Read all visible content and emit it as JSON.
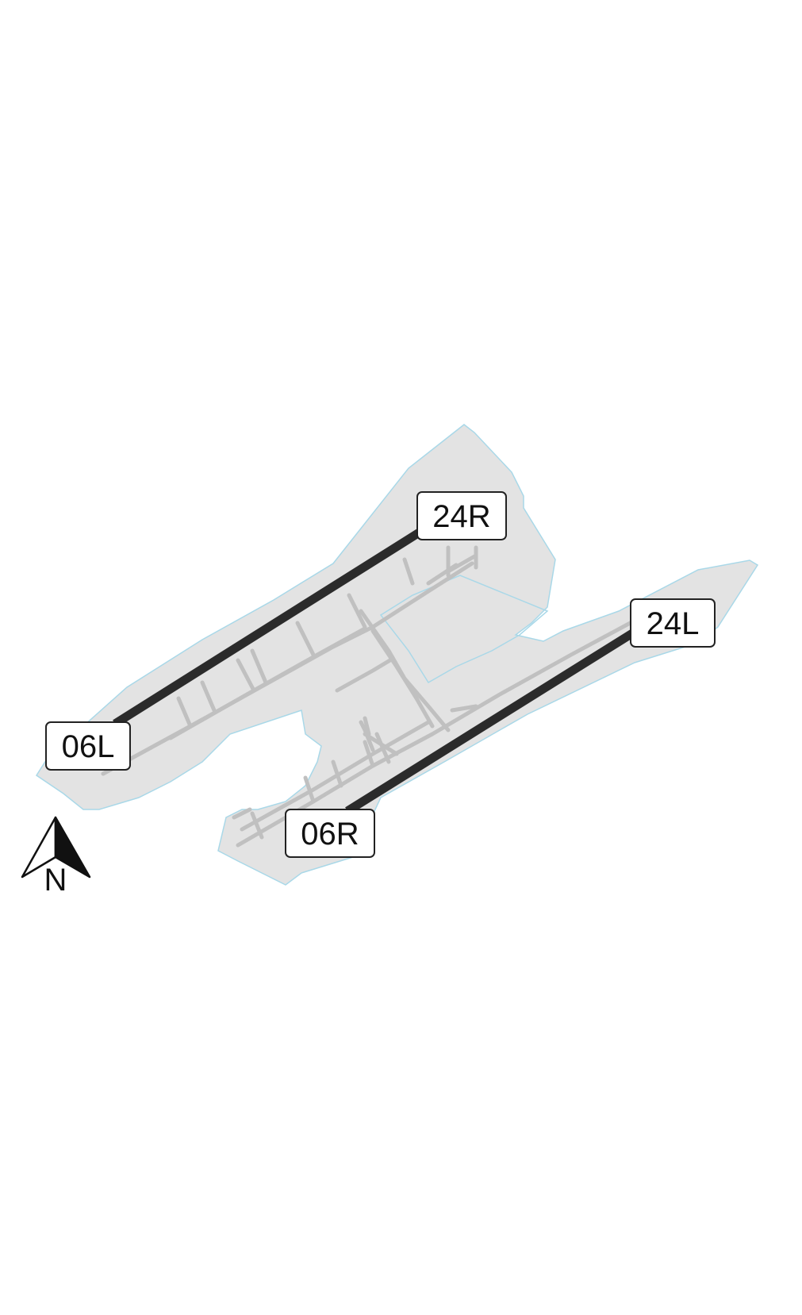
{
  "map": {
    "colors": {
      "background": "#ffffff",
      "airport_area_fill": "#e3e3e3",
      "airport_area_outline": "#a9d8e8",
      "taxiway": "#c0c0c0",
      "runway": "#2b2b2b",
      "label_fill": "#ffffff",
      "label_border": "#222222",
      "north_arrow": "#111111"
    },
    "north_arrow": {
      "icon": "north-arrow-icon",
      "label": "N"
    },
    "runways": [
      {
        "id": "runway-06L-24R",
        "ends": [
          "06L",
          "24R"
        ]
      },
      {
        "id": "runway-06R-24L",
        "ends": [
          "06R",
          "24L"
        ]
      }
    ],
    "runway_labels": {
      "r24R": "24R",
      "r06L": "06L",
      "r24L": "24L",
      "r06R": "06R"
    }
  }
}
